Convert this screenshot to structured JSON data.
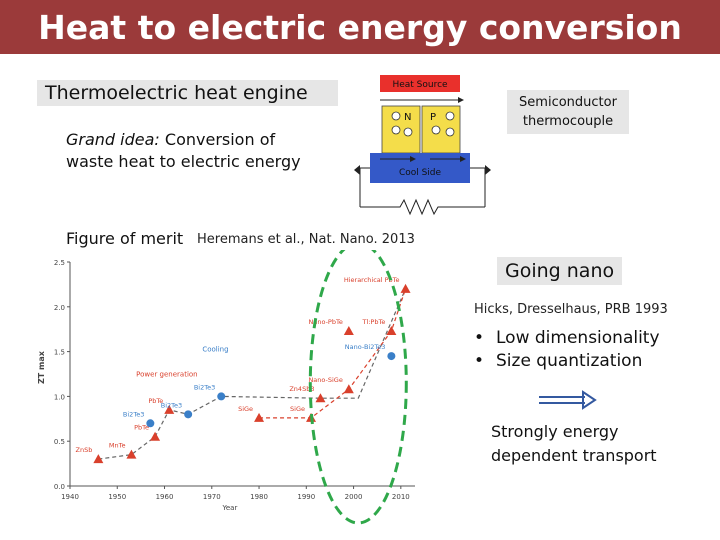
{
  "slide": {
    "title": "Heat to electric energy conversion",
    "heat_engine_label": "Thermoelectric heat engine",
    "grand_idea_em": "Grand idea:",
    "grand_idea_text": " Conversion of",
    "grand_idea_text2": "waste heat to electric energy",
    "semiconductor_label": "Semiconductor thermocouple",
    "figure_of_merit": "Figure of merit",
    "citation": "Heremans et al., Nat. Nano. 2013",
    "going_nano": "Going nano",
    "hicks_ref": "Hicks, Dresselhaus, PRB 1993",
    "bullets": [
      "Low dimensionality",
      "Size quantization"
    ],
    "strongly_line1": "Strongly energy",
    "strongly_line2": "dependent transport"
  },
  "device": {
    "heat_source": "Heat Source",
    "cool_side": "Cool Side",
    "n_label": "N",
    "p_label": "P"
  },
  "chart_data": {
    "type": "scatter",
    "xlabel": "Year",
    "ylabel": "ZT max",
    "xlim": [
      1940,
      2013
    ],
    "ylim": [
      0,
      2.5
    ],
    "xticks": [
      1940,
      1950,
      1960,
      1970,
      1980,
      1990,
      2000,
      2010
    ],
    "yticks": [
      0.0,
      0.5,
      1.0,
      1.5,
      2.0,
      2.5
    ],
    "series": [
      {
        "name": "Power generation",
        "color": "#d9402c",
        "marker": "triangle",
        "points": [
          {
            "x": 1946,
            "y": 0.3,
            "label": "ZnSb"
          },
          {
            "x": 1953,
            "y": 0.35,
            "label": "MnTe"
          },
          {
            "x": 1958,
            "y": 0.55,
            "label": "PbTe"
          },
          {
            "x": 1961,
            "y": 0.85,
            "label": "PbTe"
          },
          {
            "x": 1980,
            "y": 0.76,
            "label": "SiGe"
          },
          {
            "x": 1991,
            "y": 0.76,
            "label": "SiGe"
          },
          {
            "x": 1993,
            "y": 0.98,
            "label": "Zn4Sb3"
          },
          {
            "x": 1999,
            "y": 1.08,
            "label": "Nano-SiGe"
          },
          {
            "x": 1999,
            "y": 1.73,
            "label": "Nano-PbTe"
          },
          {
            "x": 2008,
            "y": 1.73,
            "label": "Tl:PbTe"
          },
          {
            "x": 2011,
            "y": 2.2,
            "label": "Hierarchical PbTe"
          }
        ]
      },
      {
        "name": "Cooling",
        "color": "#3a7fc8",
        "marker": "circle",
        "points": [
          {
            "x": 1957,
            "y": 0.7,
            "label": "Bi2Te3"
          },
          {
            "x": 1965,
            "y": 0.8,
            "label": "Bi2Te3"
          },
          {
            "x": 1972,
            "y": 1.0,
            "label": "Bi2Te3"
          },
          {
            "x": 2008,
            "y": 1.45,
            "label": "Nano-Bi2Te3"
          }
        ]
      }
    ]
  },
  "colors": {
    "title_bar": "#9b3a3a",
    "heat_source": "#e9302c",
    "cool_side": "#3459c8",
    "semiconductor_fill": "#f4dd4a",
    "highlight_ellipse": "#2fa84a"
  }
}
